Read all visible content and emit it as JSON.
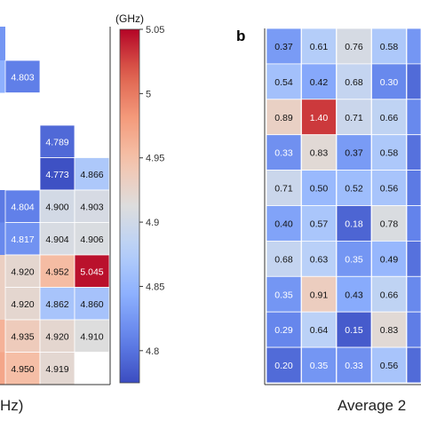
{
  "chart_data": [
    {
      "type": "heatmap",
      "panel": "a (cropped)",
      "colorbar": {
        "unit_label": "(GHz)",
        "min": 4.775,
        "max": 5.05,
        "ticks": [
          "5.05",
          "5",
          "4.95",
          "4.9",
          "4.85",
          "4.8"
        ],
        "tick_values": [
          5.05,
          5.0,
          4.95,
          4.9,
          4.85,
          4.8
        ],
        "colormap": "coolwarm"
      },
      "xlabel_fragment": "Hz)",
      "columns_visible": 3,
      "rows_visible": 10,
      "row_partial_cells": [
        [
          4.82,
          null,
          null,
          null
        ],
        [
          4.84,
          4.803,
          null,
          null
        ],
        [
          null,
          null,
          null,
          null
        ],
        [
          null,
          null,
          4.789,
          null
        ],
        [
          null,
          null,
          4.773,
          4.866
        ],
        [
          4.8,
          4.804,
          4.9,
          4.903
        ],
        [
          4.81,
          4.817,
          4.904,
          4.906
        ],
        [
          4.93,
          4.92,
          4.952,
          5.045
        ],
        [
          4.93,
          4.92,
          4.862,
          4.86
        ],
        [
          4.96,
          4.935,
          4.92,
          4.91
        ],
        [
          4.97,
          4.95,
          4.919,
          null
        ]
      ],
      "rows": [
        {
          "values": [
            4.803,
            null,
            null
          ],
          "labels": [
            "4.803",
            "",
            ""
          ]
        },
        {
          "values": [
            null,
            null,
            null
          ],
          "labels": [
            "",
            "",
            ""
          ]
        },
        {
          "values": [
            null,
            4.789,
            null
          ],
          "labels": [
            "",
            "4.789",
            ""
          ]
        },
        {
          "values": [
            null,
            4.773,
            4.866
          ],
          "labels": [
            "",
            "4.773",
            "4.866"
          ]
        },
        {
          "values": [
            4.804,
            4.9,
            4.903
          ],
          "labels": [
            "4.804",
            "4.900",
            "4.903"
          ]
        },
        {
          "values": [
            4.817,
            4.904,
            4.906
          ],
          "labels": [
            "4.817",
            "4.904",
            "4.906"
          ]
        },
        {
          "values": [
            4.92,
            4.952,
            5.045
          ],
          "labels": [
            "4.920",
            "4.952",
            "5.045"
          ]
        },
        {
          "values": [
            4.92,
            4.862,
            4.86
          ],
          "labels": [
            "4.920",
            "4.862",
            "4.860"
          ]
        },
        {
          "values": [
            4.935,
            4.92,
            4.91
          ],
          "labels": [
            "4.935",
            "4.920",
            "4.910"
          ]
        },
        {
          "values": [
            4.95,
            4.919,
            null
          ],
          "labels": [
            "4.950",
            "4.919",
            ""
          ]
        }
      ],
      "left_strip": [
        0.88,
        0.3,
        null,
        null,
        null,
        0.25,
        0.35,
        0.7,
        0.7,
        0.78,
        0.82
      ]
    },
    {
      "type": "heatmap",
      "panel_label": "b",
      "xlabel_fragment": "Average 2",
      "columns_visible": 4,
      "rows": [
        {
          "values": [
            0.37,
            0.61,
            0.76,
            0.58
          ],
          "labels": [
            "0.37",
            "0.61",
            "0.76",
            "0.58"
          ]
        },
        {
          "values": [
            0.54,
            0.42,
            0.68,
            0.3
          ],
          "labels": [
            "0.54",
            "0.42",
            "0.68",
            "0.30"
          ]
        },
        {
          "values": [
            0.89,
            1.4,
            0.71,
            0.66
          ],
          "labels": [
            "0.89",
            "1.40",
            "0.71",
            "0.66"
          ]
        },
        {
          "values": [
            0.33,
            0.83,
            0.37,
            0.58
          ],
          "labels": [
            "0.33",
            "0.83",
            "0.37",
            "0.58"
          ]
        },
        {
          "values": [
            0.71,
            0.5,
            0.52,
            0.56
          ],
          "labels": [
            "0.71",
            "0.50",
            "0.52",
            "0.56"
          ]
        },
        {
          "values": [
            0.4,
            0.57,
            0.18,
            0.78
          ],
          "labels": [
            "0.40",
            "0.57",
            "0.18",
            "0.78"
          ]
        },
        {
          "values": [
            0.68,
            0.63,
            0.35,
            0.49
          ],
          "labels": [
            "0.68",
            "0.63",
            "0.35",
            "0.49"
          ]
        },
        {
          "values": [
            0.35,
            0.91,
            0.43,
            0.66
          ],
          "labels": [
            "0.35",
            "0.91",
            "0.43",
            "0.66"
          ]
        },
        {
          "values": [
            0.29,
            0.64,
            0.15,
            0.83
          ],
          "labels": [
            "0.29",
            "0.64",
            "0.15",
            "0.83"
          ]
        },
        {
          "values": [
            0.2,
            0.35,
            0.33,
            0.56
          ],
          "labels": [
            "0.20",
            "0.35",
            "0.33",
            "0.56"
          ]
        }
      ],
      "right_strip": [
        0.35,
        0.2,
        0.3,
        0.22,
        0.25,
        0.28,
        0.22,
        0.3,
        0.26,
        0.2
      ],
      "color_range": [
        0.1,
        1.5
      ],
      "colormap": "coolwarm"
    }
  ]
}
